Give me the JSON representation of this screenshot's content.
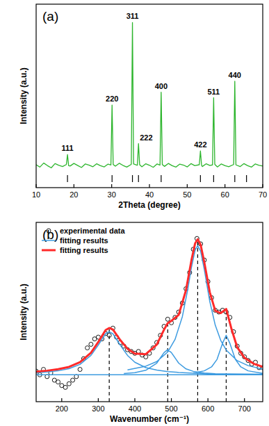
{
  "chart_data": [
    {
      "type": "line",
      "title": "(a)",
      "x_label": "2Theta (degree)",
      "y_label": "Intensity (a.u.)",
      "xlim": [
        10,
        70
      ],
      "ylim": [
        0,
        100
      ],
      "xticks": [
        10,
        20,
        30,
        40,
        50,
        60,
        70
      ],
      "yticks": [],
      "tick_labels": "x",
      "color": "#2db52d",
      "x": [
        10,
        11,
        12,
        13,
        14,
        15,
        16,
        17,
        18.0,
        18.3,
        18.6,
        19,
        20,
        21,
        22,
        23,
        24,
        25,
        26,
        27,
        28,
        29,
        29.8,
        30.1,
        30.4,
        31,
        32,
        33,
        34,
        35.2,
        35.5,
        35.8,
        36.8,
        37.1,
        37.4,
        38,
        39,
        40,
        41,
        42,
        42.8,
        43.1,
        43.4,
        44,
        45,
        46,
        47,
        48,
        49,
        50,
        51,
        52,
        53.2,
        53.5,
        53.8,
        54,
        55,
        56,
        56.7,
        57.0,
        57.3,
        58,
        59,
        60,
        61,
        62.3,
        62.6,
        62.9,
        64,
        65,
        66,
        67,
        68,
        69,
        70
      ],
      "values": [
        12.5,
        11.2,
        13.4,
        12.0,
        10.8,
        13.1,
        12.2,
        11.5,
        12.6,
        18,
        12.0,
        11.8,
        13.2,
        12.1,
        11.0,
        12.9,
        12.3,
        11.4,
        13.0,
        12.0,
        11.3,
        12.8,
        12.4,
        45,
        12.6,
        11.7,
        13.3,
        12.1,
        11.2,
        12.7,
        90,
        12.9,
        12.2,
        24,
        12.5,
        11.4,
        13.0,
        12.2,
        11.1,
        12.9,
        12.3,
        52,
        12.6,
        11.6,
        13.2,
        12.0,
        11.2,
        12.8,
        12.3,
        11.3,
        13.1,
        12.0,
        12.5,
        20,
        12.2,
        11.5,
        13.0,
        12.1,
        12.4,
        49,
        12.7,
        11.3,
        12.9,
        12.0,
        11.4,
        12.6,
        58,
        12.4,
        11.5,
        13.1,
        12.0,
        11.2,
        12.9,
        12.2,
        11.8
      ],
      "annotations": [
        {
          "text": "111",
          "x": 18.3
        },
        {
          "text": "220",
          "x": 30.1
        },
        {
          "text": "311",
          "x": 35.5
        },
        {
          "text": "222",
          "x": 37.1
        },
        {
          "text": "400",
          "x": 43.1
        },
        {
          "text": "422",
          "x": 53.5
        },
        {
          "text": "511",
          "x": 57.0
        },
        {
          "text": "440",
          "x": 62.6
        }
      ],
      "reference_peaks": [
        18.3,
        30.1,
        35.5,
        37.1,
        43.1,
        53.5,
        57.0,
        62.6,
        65.7
      ]
    },
    {
      "type": "line",
      "title": "(b)",
      "x_label": "Wavenumber (cm⁻¹)",
      "y_label": "Intensity (a.u.)",
      "xlim": [
        130,
        750
      ],
      "ylim": [
        0,
        100
      ],
      "xticks": [
        200,
        300,
        400,
        500,
        600,
        700
      ],
      "yticks": [],
      "tick_labels": "x",
      "legend": "upper left",
      "series": [
        {
          "name": "experimental data",
          "type": "scatter",
          "marker": "circle",
          "color": "#000000",
          "x": [
            130,
            140,
            150,
            160,
            170,
            180,
            190,
            200,
            210,
            220,
            230,
            240,
            250,
            260,
            270,
            280,
            290,
            300,
            310,
            320,
            330,
            340,
            350,
            360,
            370,
            380,
            390,
            400,
            410,
            420,
            430,
            440,
            450,
            460,
            470,
            480,
            490,
            500,
            510,
            520,
            530,
            540,
            550,
            560,
            570,
            580,
            590,
            600,
            610,
            620,
            630,
            640,
            650,
            660,
            670,
            680,
            690,
            700,
            710,
            720,
            730,
            740,
            750
          ],
          "values": [
            17,
            15,
            18,
            14,
            16,
            12,
            11,
            9,
            8,
            10,
            12,
            14,
            18,
            24,
            30,
            32,
            35,
            36,
            35,
            38,
            37,
            41,
            36,
            33,
            31,
            29,
            28,
            27,
            28,
            26,
            25,
            27,
            30,
            33,
            37,
            42,
            46,
            44,
            47,
            50,
            55,
            63,
            72,
            85,
            91,
            88,
            79,
            67,
            58,
            51,
            50,
            51,
            50,
            47,
            39,
            31,
            27,
            25,
            23,
            21,
            22,
            19,
            19
          ]
        },
        {
          "name": "fitting results",
          "type": "line",
          "color": "#3d9be0",
          "x": [
            130,
            750,
            null,
            130,
            160,
            190,
            220,
            250,
            280,
            300,
            320,
            330,
            340,
            360,
            380,
            400,
            430,
            460,
            490,
            520,
            560,
            600,
            650,
            700,
            750,
            null,
            370,
            400,
            430,
            460,
            480,
            490,
            500,
            520,
            540,
            560,
            590,
            620,
            650,
            null,
            380,
            430,
            460,
            490,
            510,
            530,
            545,
            555,
            565,
            572,
            580,
            590,
            605,
            620,
            635,
            650,
            680,
            710,
            750,
            null,
            560,
            590,
            610,
            625,
            640,
            650,
            660,
            675,
            690,
            710,
            750
          ],
          "values": [
            15,
            15,
            null,
            16.2,
            16.6,
            17.2,
            18.4,
            20.8,
            25.8,
            31.6,
            37.9,
            39,
            37.9,
            31.6,
            25.8,
            22.0,
            19.0,
            17.6,
            16.8,
            16.3,
            15.9,
            15.6,
            15.5,
            15.4,
            15.3,
            null,
            15.7,
            16.2,
            17.5,
            21.5,
            27.4,
            29,
            27.4,
            21.5,
            18.3,
            16.9,
            16.0,
            15.6,
            15.4,
            null,
            17.7,
            19.8,
            22.4,
            27.7,
            34.7,
            47.4,
            62.8,
            75,
            84.6,
            87,
            84,
            73.8,
            56,
            42.7,
            34.2,
            28.8,
            22.9,
            20.1,
            18.1,
            null,
            16.0,
            17.2,
            19.4,
            23.6,
            32.6,
            37,
            32.6,
            23.6,
            19.4,
            17.2,
            15.8
          ]
        },
        {
          "name": "fitting results",
          "type": "line",
          "color": "#ff2a2a",
          "x": [
            130,
            160,
            190,
            220,
            250,
            280,
            300,
            320,
            330,
            340,
            360,
            380,
            400,
            430,
            460,
            480,
            490,
            500,
            520,
            540,
            555,
            565,
            572,
            580,
            590,
            605,
            620,
            635,
            650,
            665,
            680,
            700,
            725,
            750
          ],
          "values": [
            16.8,
            17.3,
            18.1,
            19.4,
            22.0,
            27.3,
            33.3,
            39.9,
            41.1,
            40.3,
            34.4,
            29.5,
            26.8,
            26.5,
            31.8,
            40.2,
            43.8,
            45.1,
            48.4,
            62.2,
            79.0,
            88.3,
            90.6,
            87.6,
            77.8,
            61.1,
            50.7,
            49.4,
            51.7,
            40.2,
            30.4,
            24.5,
            21.2,
            19.4
          ]
        }
      ],
      "reference_lines": [
        330,
        490,
        572,
        650
      ]
    }
  ]
}
